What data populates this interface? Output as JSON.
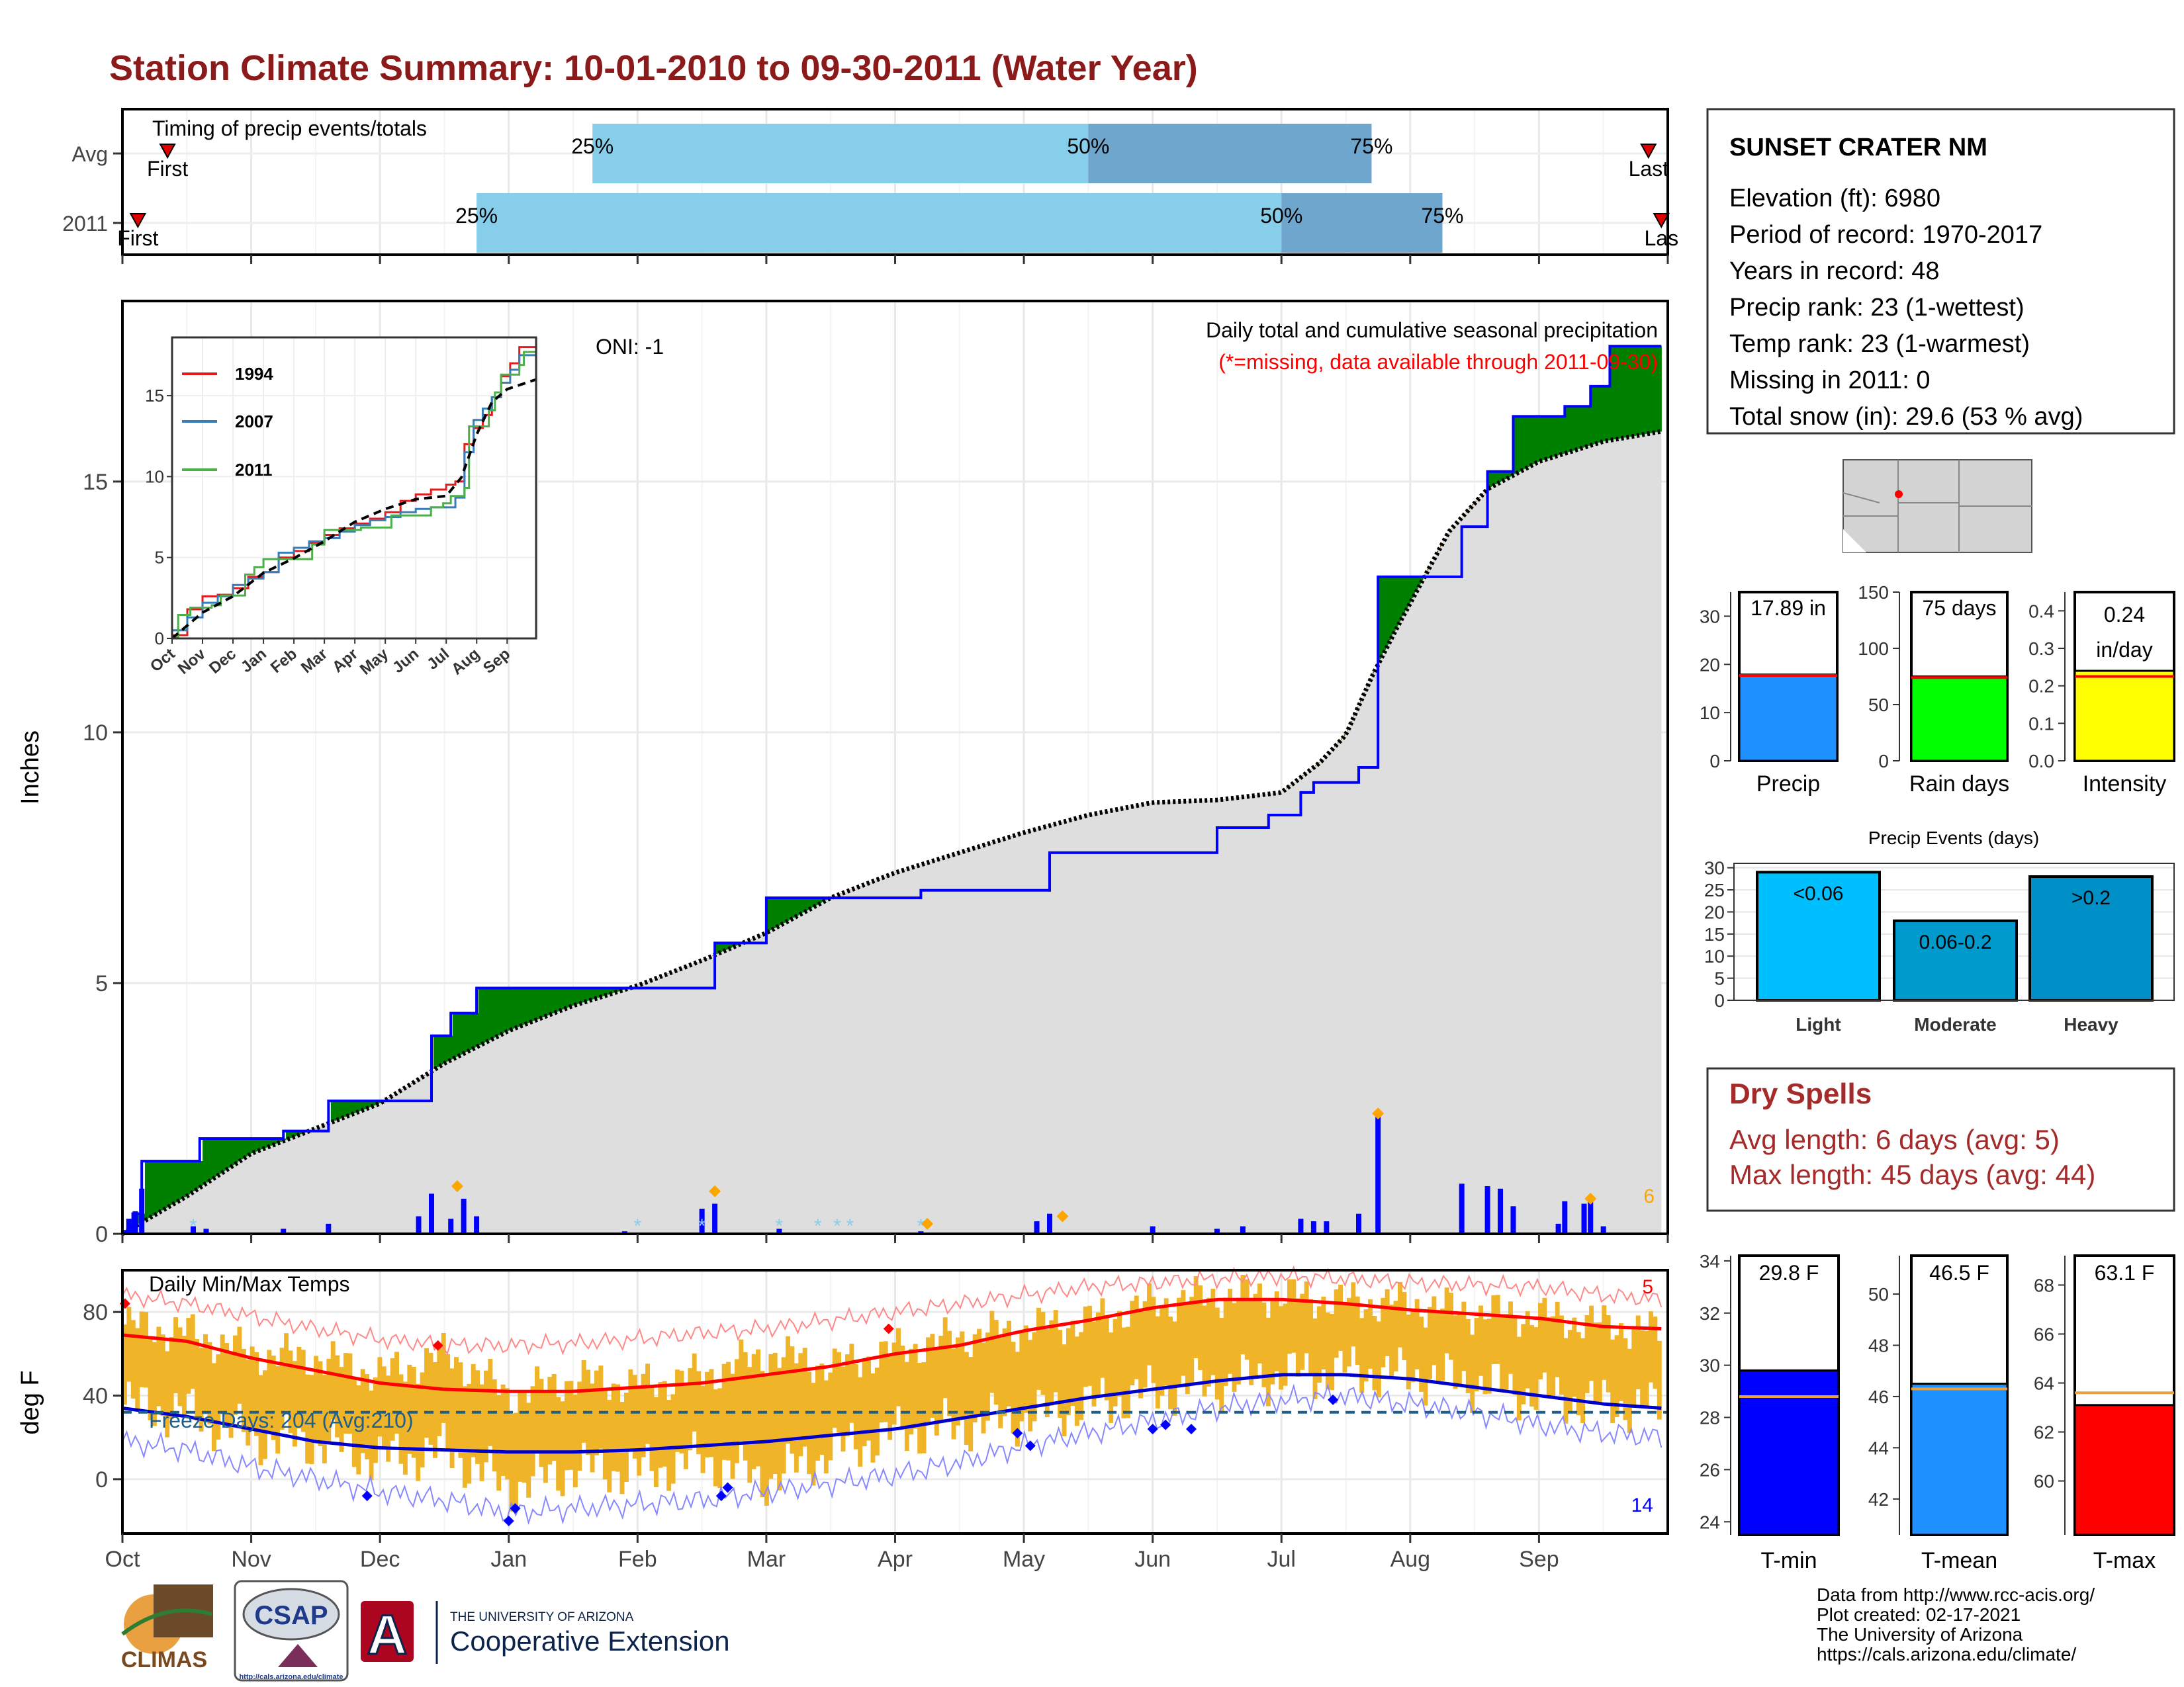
{
  "title": "Station Climate Summary: 10-01-2010 to 09-30-2011 (Water Year)",
  "colors": {
    "title": "#8B1A1A",
    "q1": "#87CEEB",
    "q2": "#6EA6CD",
    "surplus": "#008000",
    "deficit": "#7F4F0F",
    "cumulative_line": "#0000FF",
    "normal_fill": "#DEDEDE",
    "daily_bar": "#0000FF",
    "temp_bar": "#F0B429",
    "tmax_line": "#FF0000",
    "tmin_line": "#0000CC",
    "dry_spells": "#A52A2A",
    "missing_red": "#FF0000",
    "record_marker": "#FFA500"
  },
  "timing_panel": {
    "heading": "Timing of precip events/totals",
    "rows": [
      {
        "label": "Avg",
        "first_label": "First",
        "last_label": "Last",
        "first_month": 0.35,
        "last_month": 11.85,
        "p25_month": 3.65,
        "p50_month": 7.5,
        "p75_month": 9.7,
        "p25_label": "25%",
        "p50_label": "50%",
        "p75_label": "75%"
      },
      {
        "label": "2011",
        "first_label": "First",
        "last_label": "Las",
        "first_month": 0.12,
        "last_month": 11.95,
        "p25_month": 2.75,
        "p50_month": 9.0,
        "p75_month": 10.25,
        "p25_label": "25%",
        "p50_label": "50%",
        "p75_label": "75%"
      }
    ]
  },
  "chart_data": [
    {
      "id": "cumulative_precip",
      "type": "area",
      "title": "Daily total and cumulative seasonal precipitation",
      "note": "(*=missing, data available through 2011-09-30)",
      "oni_label": "ONI: -1",
      "ylabel": "Inches",
      "ylim": [
        0,
        18.6
      ],
      "yticks": [
        0,
        5,
        10,
        15
      ],
      "x_label_months": [
        "Oct",
        "Nov",
        "Dec",
        "Jan",
        "Feb",
        "Mar",
        "Apr",
        "May",
        "Jun",
        "Jul",
        "Aug",
        "Sep"
      ],
      "xlim_months": [
        0,
        11.95
      ],
      "corner_count": "6",
      "series": [
        {
          "name": "observed_cumulative",
          "x": [
            0,
            0.08,
            0.15,
            0.2,
            0.6,
            0.7,
            1.25,
            1.6,
            2.15,
            2.4,
            2.55,
            2.7,
            2.75,
            4.1,
            4.5,
            4.6,
            5.0,
            6.1,
            6.2,
            7.2,
            8.5,
            8.8,
            8.9,
            9.15,
            9.25,
            9.6,
            9.75,
            9.9,
            10.4,
            10.6,
            10.8,
            11.2,
            11.4,
            11.55,
            11.95
          ],
          "y": [
            0.05,
            0.4,
            1.45,
            1.45,
            1.9,
            1.9,
            2.05,
            2.65,
            2.65,
            3.95,
            4.4,
            4.4,
            4.9,
            4.9,
            4.9,
            5.8,
            6.7,
            6.7,
            6.85,
            7.6,
            8.1,
            8.1,
            8.35,
            8.8,
            9.0,
            9.3,
            13.1,
            13.1,
            14.1,
            15.2,
            16.3,
            16.5,
            16.9,
            17.7,
            17.7
          ]
        },
        {
          "name": "normal_cumulative",
          "x": [
            0,
            0.5,
            1,
            1.5,
            2,
            2.5,
            3,
            3.5,
            4,
            4.5,
            5,
            5.5,
            6,
            6.5,
            7,
            7.5,
            8,
            8.5,
            9,
            9.3,
            9.5,
            9.7,
            9.9,
            10.1,
            10.3,
            10.6,
            11,
            11.5,
            11.95
          ],
          "y": [
            0,
            0.75,
            1.6,
            2.1,
            2.6,
            3.4,
            4.05,
            4.55,
            4.95,
            5.45,
            6.0,
            6.7,
            7.2,
            7.6,
            8.0,
            8.35,
            8.6,
            8.65,
            8.8,
            9.4,
            9.95,
            11.1,
            12.1,
            13.05,
            14.0,
            14.85,
            15.4,
            15.8,
            16.0
          ]
        },
        {
          "name": "daily_precip",
          "x": [
            0.05,
            0.1,
            0.15,
            0.55,
            0.65,
            1.25,
            1.6,
            2.3,
            2.4,
            2.55,
            2.65,
            2.75,
            3.9,
            4.5,
            4.6,
            5.1,
            6.2,
            7.1,
            7.2,
            8.0,
            8.5,
            8.7,
            9.15,
            9.25,
            9.35,
            9.6,
            9.75,
            10.4,
            10.6,
            10.7,
            10.8,
            11.15,
            11.2,
            11.35,
            11.4,
            11.5
          ],
          "y": [
            0.3,
            0.45,
            0.9,
            0.15,
            0.1,
            0.1,
            0.2,
            0.35,
            0.8,
            0.3,
            0.7,
            0.35,
            0.05,
            0.5,
            0.6,
            0.1,
            0.05,
            0.25,
            0.4,
            0.15,
            0.1,
            0.15,
            0.3,
            0.25,
            0.25,
            0.4,
            2.4,
            1.0,
            0.95,
            0.9,
            0.55,
            0.2,
            0.65,
            0.6,
            0.7,
            0.15
          ]
        }
      ]
    },
    {
      "id": "inset_cumulative",
      "type": "line",
      "x_label_months": [
        "Oct",
        "Nov",
        "Dec",
        "Jan",
        "Feb",
        "Mar",
        "Apr",
        "May",
        "Jun",
        "Jul",
        "Aug",
        "Sep"
      ],
      "ylim": [
        0,
        18.6
      ],
      "yticks": [
        0,
        5,
        10,
        15
      ],
      "series": [
        {
          "name": "1994",
          "color": "#E41A1C",
          "x": [
            0,
            0.5,
            1,
            1.5,
            2,
            2.5,
            3,
            3.5,
            4,
            4.5,
            5,
            5.5,
            6,
            6.5,
            7,
            7.5,
            8,
            8.5,
            9,
            9.3,
            9.6,
            9.9,
            10.2,
            10.5,
            10.8,
            11.1,
            11.4,
            11.95
          ],
          "y": [
            0.2,
            1.8,
            2.6,
            2.7,
            3.1,
            3.8,
            4.1,
            5.0,
            5.4,
            5.9,
            6.4,
            6.8,
            7.1,
            7.4,
            7.8,
            8.5,
            8.9,
            9.2,
            9.5,
            9.7,
            12.0,
            13.0,
            13.8,
            14.9,
            16.2,
            17.0,
            18.0,
            18.4
          ]
        },
        {
          "name": "2007",
          "color": "#377EB8",
          "x": [
            0,
            0.5,
            1,
            1.5,
            2,
            2.5,
            3,
            3.5,
            4,
            4.5,
            5,
            5.5,
            6,
            6.5,
            7,
            7.5,
            8,
            8.5,
            9,
            9.3,
            9.6,
            9.9,
            10.2,
            10.5,
            10.8,
            11.1,
            11.4,
            11.95
          ],
          "y": [
            0.5,
            1.3,
            2.2,
            2.6,
            3.3,
            3.7,
            4.1,
            5.3,
            5.6,
            6.0,
            6.2,
            6.6,
            7.0,
            7.3,
            7.5,
            7.8,
            8.0,
            8.1,
            8.1,
            8.7,
            11.5,
            13.5,
            14.2,
            14.9,
            15.8,
            16.6,
            17.5,
            18.3
          ]
        },
        {
          "name": "2011",
          "color": "#4DAF4A",
          "x": [
            0,
            0.2,
            0.6,
            1.3,
            1.6,
            2.4,
            2.7,
            3.0,
            4.1,
            4.6,
            5.0,
            6.2,
            7.2,
            8.5,
            8.9,
            9.15,
            9.6,
            9.75,
            10.4,
            10.6,
            10.8,
            11.4,
            11.55,
            11.95
          ],
          "y": [
            0.05,
            1.45,
            1.9,
            2.05,
            2.65,
            3.95,
            4.4,
            4.9,
            4.9,
            5.8,
            6.7,
            6.85,
            7.6,
            8.1,
            8.35,
            8.8,
            9.3,
            13.1,
            14.1,
            15.2,
            16.3,
            16.9,
            17.7,
            17.7
          ]
        },
        {
          "name": "normal",
          "color": "#000000",
          "x": [
            0,
            1,
            2,
            3,
            4,
            5,
            6,
            7,
            8,
            9,
            9.5,
            10,
            10.5,
            11,
            11.95
          ],
          "y": [
            0,
            1.6,
            2.6,
            4.05,
            4.95,
            6.0,
            7.2,
            8.0,
            8.6,
            8.8,
            9.95,
            12.6,
            14.6,
            15.4,
            16.0
          ]
        }
      ]
    },
    {
      "id": "daily_temps",
      "type": "bar",
      "title": "Daily Min/Max Temps",
      "ylabel": "deg F",
      "ylim": [
        -26,
        100
      ],
      "yticks": [
        0,
        40,
        80
      ],
      "x_label_months": [
        "Oct",
        "Nov",
        "Dec",
        "Jan",
        "Feb",
        "Mar",
        "Apr",
        "May",
        "Jun",
        "Jul",
        "Aug",
        "Sep"
      ],
      "freeze_label": "Freeze Days: 204 (Avg:210)",
      "freeze_line_value": 32,
      "corner_high_count": "5",
      "corner_low_count": "14",
      "series": [
        {
          "name": "normal_max",
          "x": [
            0,
            0.5,
            1,
            1.5,
            2,
            2.5,
            3,
            3.5,
            4,
            4.5,
            5,
            5.5,
            6,
            6.5,
            7,
            7.5,
            8,
            8.5,
            9,
            9.5,
            10,
            10.5,
            11,
            11.5,
            11.95
          ],
          "y": [
            69,
            66,
            58,
            52,
            46,
            43,
            42,
            42,
            44,
            46,
            50,
            54,
            60,
            64,
            71,
            76,
            82,
            86,
            86,
            84,
            81,
            79,
            77,
            73,
            72
          ]
        },
        {
          "name": "normal_min",
          "x": [
            0,
            0.5,
            1,
            1.5,
            2,
            2.5,
            3,
            3.5,
            4,
            4.5,
            5,
            5.5,
            6,
            6.5,
            7,
            7.5,
            8,
            8.5,
            9,
            9.5,
            10,
            10.5,
            11,
            11.5,
            11.95
          ],
          "y": [
            34,
            30,
            24,
            18,
            15,
            14,
            13,
            13,
            14,
            16,
            18,
            21,
            24,
            29,
            34,
            39,
            43,
            47,
            50,
            50,
            48,
            44,
            40,
            36,
            34
          ]
        },
        {
          "name": "record_max",
          "x": [
            0,
            0.5,
            1,
            1.5,
            2,
            2.5,
            3,
            3.5,
            4,
            4.5,
            5,
            5.5,
            6,
            6.5,
            7,
            7.5,
            8,
            8.5,
            9,
            9.5,
            10,
            10.5,
            11,
            11.5,
            11.95
          ],
          "y": [
            88,
            84,
            78,
            72,
            67,
            64,
            64,
            65,
            67,
            70,
            72,
            76,
            80,
            84,
            88,
            92,
            94,
            96,
            97,
            96,
            94,
            93,
            92,
            88,
            86
          ]
        },
        {
          "name": "record_min",
          "x": [
            0,
            0.5,
            1,
            1.5,
            2,
            2.5,
            3,
            3.5,
            4,
            4.5,
            5,
            5.5,
            6,
            6.5,
            7,
            7.5,
            8,
            8.5,
            9,
            9.5,
            10,
            10.5,
            11,
            11.5,
            11.95
          ],
          "y": [
            18,
            14,
            6,
            0,
            -6,
            -10,
            -16,
            -14,
            -12,
            -10,
            -6,
            -2,
            2,
            8,
            16,
            22,
            28,
            34,
            38,
            40,
            36,
            32,
            26,
            22,
            20
          ]
        },
        {
          "name": "daily_max",
          "x": [
            0,
            0.5,
            1,
            1.5,
            2,
            2.5,
            3,
            3.5,
            4,
            4.5,
            5,
            5.5,
            6,
            6.5,
            7,
            7.5,
            8,
            8.5,
            9,
            9.5,
            10,
            10.5,
            11,
            11.5,
            11.95
          ],
          "y": [
            74,
            70,
            60,
            58,
            50,
            60,
            40,
            48,
            45,
            50,
            60,
            54,
            62,
            68,
            72,
            76,
            84,
            88,
            88,
            85,
            84,
            80,
            78,
            74,
            70
          ]
        },
        {
          "name": "daily_min",
          "x": [
            0,
            0.5,
            1,
            1.5,
            2,
            2.5,
            3,
            3.5,
            4,
            4.5,
            5,
            5.5,
            6,
            6.5,
            7,
            7.5,
            8,
            8.5,
            9,
            9.5,
            10,
            10.5,
            11,
            11.5,
            11.95
          ],
          "y": [
            36,
            32,
            20,
            18,
            10,
            14,
            -4,
            6,
            4,
            10,
            0,
            14,
            22,
            26,
            30,
            36,
            42,
            46,
            50,
            52,
            50,
            46,
            40,
            36,
            34
          ]
        }
      ]
    },
    {
      "id": "summary_precip",
      "type": "bar",
      "mini": [
        {
          "label": "Precip",
          "value_text": "17.89 in",
          "value": 17.89,
          "avg": 17.7,
          "ylim": [
            0,
            35
          ],
          "yticks": [
            0,
            10,
            20,
            30
          ],
          "color": "#1E90FF"
        },
        {
          "label": "Rain days",
          "value_text": "75 days",
          "value": 75,
          "avg": 74,
          "ylim": [
            0,
            150
          ],
          "yticks": [
            0,
            50,
            100,
            150
          ],
          "color": "#00FF00"
        },
        {
          "label": "Intensity",
          "value_text": "0.24",
          "value_text2": "in/day",
          "value": 0.24,
          "avg": 0.225,
          "ylim": [
            0,
            0.45
          ],
          "yticks": [
            0.0,
            0.1,
            0.2,
            0.3,
            0.4
          ],
          "ytick_labels": [
            "0.0",
            "0.1",
            "0.2",
            "0.3",
            "0.4"
          ],
          "color": "#FFFF00"
        }
      ]
    },
    {
      "id": "precip_events",
      "type": "bar",
      "title": "Precip Events (days)",
      "categories": [
        "Light",
        "Moderate",
        "Heavy"
      ],
      "bar_labels": [
        "<0.06",
        "0.06-0.2",
        ">0.2"
      ],
      "values": [
        29,
        18,
        28
      ],
      "ylim": [
        0,
        31
      ],
      "yticks": [
        0,
        5,
        10,
        15,
        20,
        25,
        30
      ],
      "colors": [
        "#00BFFF",
        "#009ACD",
        "#0090C8"
      ]
    },
    {
      "id": "summary_temps",
      "type": "bar",
      "mini": [
        {
          "label": "T-min",
          "value_text": "29.8 F",
          "value": 29.8,
          "avg": 28.8,
          "ylim": [
            23.5,
            34.2
          ],
          "yticks": [
            24,
            26,
            28,
            30,
            32,
            34
          ],
          "color": "#0000FF"
        },
        {
          "label": "T-mean",
          "value_text": "46.5 F",
          "value": 46.5,
          "avg": 46.3,
          "ylim": [
            40.6,
            51.5
          ],
          "yticks": [
            42,
            44,
            46,
            48,
            50
          ],
          "color": "#1E90FF"
        },
        {
          "label": "T-max",
          "value_text": "63.1 F",
          "value": 63.1,
          "avg": 63.6,
          "ylim": [
            57.8,
            69.2
          ],
          "yticks": [
            60,
            62,
            64,
            66,
            68
          ],
          "color": "#FF0000"
        }
      ]
    }
  ],
  "station": {
    "name": "SUNSET CRATER NM",
    "lines": [
      "Elevation (ft): 6980",
      "Period of record: 1970-2017",
      "Years in record: 48",
      "Precip rank: 23 (1-wettest)",
      "Temp rank: 23 (1-warmest)",
      "Missing in 2011: 0",
      "Total snow (in): 29.6 (53 % avg)"
    ]
  },
  "dry_spells": {
    "heading": "Dry Spells",
    "avg_line": "Avg length: 6 days (avg: 5)",
    "max_line": "Max length: 45 days (avg: 44)"
  },
  "footer": {
    "lines": [
      "Data from http://www.rcc-acis.org/",
      "Plot created: 02-17-2021",
      "The University of Arizona",
      "https://cals.arizona.edu/climate/"
    ]
  },
  "logos": {
    "climas": "CLIMAS",
    "csap": "CSAP",
    "csap_url": "http://cals.arizona.edu/climate",
    "ua_letter": "A",
    "ua_small": "THE UNIVERSITY OF ARIZONA",
    "ua_big": "Cooperative Extension"
  }
}
